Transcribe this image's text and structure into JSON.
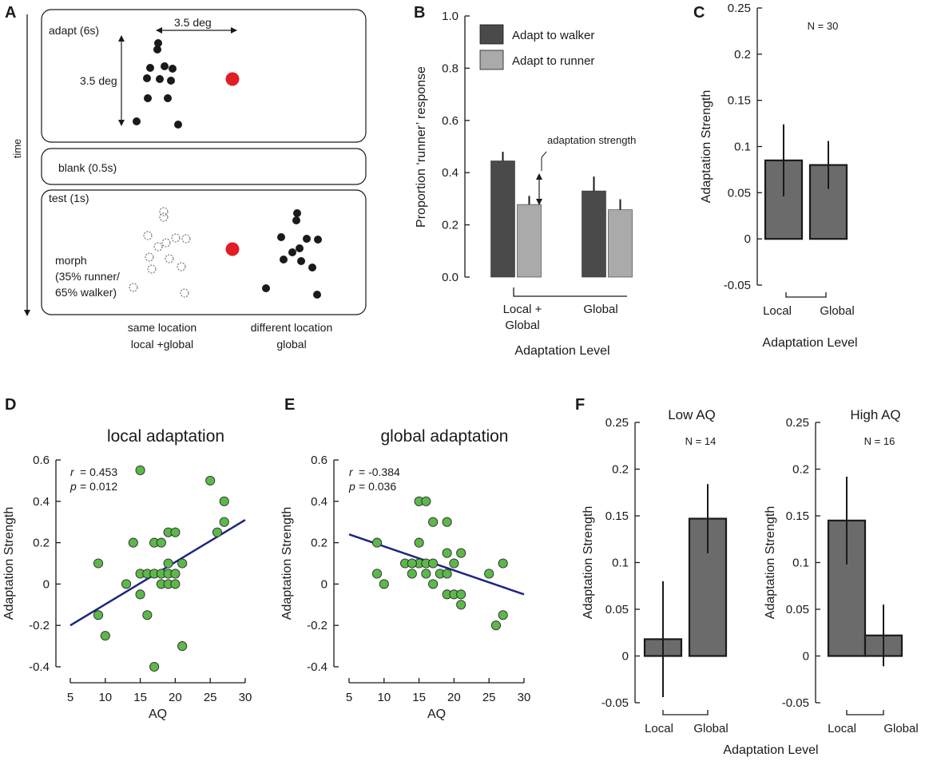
{
  "panels": {
    "A": {
      "letter": "A",
      "time_label": "time",
      "adapt_label": "adapt (6s)",
      "blank_label": "blank (0.5s)",
      "test_label": "test (1s)",
      "dim_horizontal": "3.5 deg",
      "dim_vertical": "3.5 deg",
      "morph_lines": [
        "morph",
        "(35% runner/",
        "65% walker)"
      ],
      "same_location_lines": [
        "same location",
        "local +global"
      ],
      "different_location_lines": [
        "different location",
        "global"
      ],
      "colors": {
        "dot": "#1a1a1a",
        "fixation": "#e11d25",
        "outline": "#555555"
      }
    },
    "B": {
      "letter": "B"
    },
    "C": {
      "letter": "C"
    },
    "D": {
      "letter": "D"
    },
    "E": {
      "letter": "E"
    },
    "F": {
      "letter": "F",
      "xlabel": "Adaptation Level"
    }
  },
  "chart_data": [
    {
      "id": "B",
      "type": "bar",
      "ylabel": "Proportion ‘runner’ response",
      "xlabel": "Adaptation Level",
      "ylim": [
        0,
        1.0
      ],
      "yticks": [
        "0.0",
        "0.2",
        "0.4",
        "0.6",
        "0.8",
        "1.0"
      ],
      "categories": [
        [
          "Local +",
          "Global"
        ],
        [
          "Global"
        ]
      ],
      "series": [
        {
          "name": "Adapt to walker",
          "color": "#4a4a4a",
          "values": [
            0.445,
            0.33
          ],
          "errors": [
            0.035,
            0.055
          ]
        },
        {
          "name": "Adapt to runner",
          "color": "#aaaaaa",
          "values": [
            0.278,
            0.258
          ],
          "errors": [
            0.033,
            0.04
          ]
        }
      ],
      "annotation": "adaptation strength",
      "legend": "top-right"
    },
    {
      "id": "C",
      "type": "bar",
      "ylabel": "Adaptation Strength",
      "xlabel": "Adaptation Level",
      "ylim": [
        -0.05,
        0.25
      ],
      "yticks": [
        "-0.05",
        "0",
        "0.05",
        "0.1",
        "0.15",
        "0.2",
        "0.25"
      ],
      "categories": [
        "Local",
        "Global"
      ],
      "values": [
        0.085,
        0.08
      ],
      "errors": [
        0.039,
        0.026
      ],
      "color": "#6b6b6b",
      "n_label": "N = 30"
    },
    {
      "id": "D",
      "type": "scatter",
      "title": "local adaptation",
      "xlabel": "AQ",
      "ylabel": "Adaptation Strength",
      "xlim": [
        5,
        30
      ],
      "ylim": [
        -0.4,
        0.6
      ],
      "xticks": [
        "5",
        "10",
        "15",
        "20",
        "25",
        "30"
      ],
      "yticks": [
        "-0.4",
        "-0.2",
        "0",
        "0.2",
        "0.4",
        "0.6"
      ],
      "r_label": "r",
      "r_value": "= 0.453",
      "p_label": "p",
      "p_value": "= 0.012",
      "point_color": "#5cb84a",
      "line_color": "#1c2580",
      "fit_line": [
        [
          5,
          -0.2
        ],
        [
          30,
          0.31
        ]
      ],
      "points": [
        [
          9,
          0.1
        ],
        [
          9,
          -0.15
        ],
        [
          10,
          -0.25
        ],
        [
          13,
          0
        ],
        [
          14,
          0.2
        ],
        [
          15,
          0.55
        ],
        [
          15,
          0.05
        ],
        [
          15,
          -0.05
        ],
        [
          16,
          0.05
        ],
        [
          16,
          -0.15
        ],
        [
          17,
          0.05
        ],
        [
          17,
          0.2
        ],
        [
          17,
          -0.4
        ],
        [
          18,
          0.2
        ],
        [
          18,
          0.05
        ],
        [
          18,
          0
        ],
        [
          19,
          0.25
        ],
        [
          19,
          0.05
        ],
        [
          19,
          0
        ],
        [
          19,
          0.1
        ],
        [
          20,
          0.25
        ],
        [
          20,
          0.05
        ],
        [
          20,
          0
        ],
        [
          21,
          0.1
        ],
        [
          21,
          -0.3
        ],
        [
          25,
          0.5
        ],
        [
          26,
          0.25
        ],
        [
          27,
          0.4
        ],
        [
          27,
          0.3
        ]
      ]
    },
    {
      "id": "E",
      "type": "scatter",
      "title": "global adaptation",
      "xlabel": "AQ",
      "ylabel": "Adaptation Strength",
      "xlim": [
        5,
        30
      ],
      "ylim": [
        -0.4,
        0.6
      ],
      "xticks": [
        "5",
        "10",
        "15",
        "20",
        "25",
        "30"
      ],
      "yticks": [
        "-0.4",
        "-0.2",
        "0",
        "0.2",
        "0.4",
        "0.6"
      ],
      "r_label": "r",
      "r_value": "= -0.384",
      "p_label": "p",
      "p_value": "= 0.036",
      "point_color": "#5cb84a",
      "line_color": "#1c2580",
      "fit_line": [
        [
          5,
          0.24
        ],
        [
          30,
          -0.05
        ]
      ],
      "points": [
        [
          9,
          0.2
        ],
        [
          9,
          0.05
        ],
        [
          10,
          0
        ],
        [
          13,
          0.1
        ],
        [
          14,
          0.05
        ],
        [
          15,
          0.4
        ],
        [
          15,
          0.2
        ],
        [
          15,
          0.1
        ],
        [
          16,
          0.4
        ],
        [
          16,
          0.1
        ],
        [
          16,
          0.05
        ],
        [
          17,
          0.3
        ],
        [
          17,
          0.1
        ],
        [
          17,
          0
        ],
        [
          18,
          0.05
        ],
        [
          19,
          0.3
        ],
        [
          19,
          0.15
        ],
        [
          19,
          0.05
        ],
        [
          19,
          -0.05
        ],
        [
          20,
          0.1
        ],
        [
          20,
          -0.05
        ],
        [
          21,
          0.15
        ],
        [
          21,
          -0.05
        ],
        [
          21,
          -0.1
        ],
        [
          25,
          0.05
        ],
        [
          26,
          -0.2
        ],
        [
          27,
          0.1
        ],
        [
          27,
          -0.15
        ],
        [
          14,
          0.1
        ]
      ]
    },
    {
      "id": "F-low",
      "type": "bar",
      "title": "Low AQ",
      "ylabel": "Adaptation Strength",
      "ylim": [
        -0.05,
        0.25
      ],
      "yticks": [
        "-0.05",
        "0",
        "0.05",
        "0.1",
        "0.15",
        "0.2",
        "0.25"
      ],
      "categories": [
        "Local",
        "Global"
      ],
      "values": [
        0.018,
        0.147
      ],
      "errors": [
        0.062,
        0.037
      ],
      "color": "#6b6b6b",
      "n_label": "N = 14"
    },
    {
      "id": "F-high",
      "type": "bar",
      "title": "High AQ",
      "ylabel": "Adaptation Strength",
      "ylim": [
        -0.05,
        0.25
      ],
      "yticks": [
        "-0.05",
        "0",
        "0.05",
        "0.1",
        "0.15",
        "0.2",
        "0.25"
      ],
      "categories": [
        "Local",
        "Global"
      ],
      "values": [
        0.145,
        0.022
      ],
      "errors": [
        0.047,
        0.033
      ],
      "color": "#6b6b6b",
      "n_label": "N = 16"
    }
  ]
}
